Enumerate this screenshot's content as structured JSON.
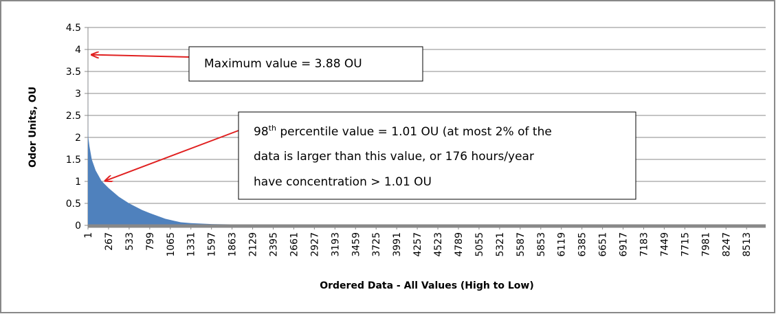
{
  "chart_data": {
    "type": "area",
    "color": "#4f81bd",
    "x_label": "Ordered Data - All Values (High to Low)",
    "y_label": "Odor Units, OU",
    "x": [
      1,
      2,
      5,
      20,
      50,
      100,
      176,
      267,
      400,
      533,
      700,
      799,
      1000,
      1200,
      1331,
      1600,
      2000,
      3000,
      4000,
      5000,
      6000,
      7000,
      8000,
      8760
    ],
    "values": [
      3.88,
      2.2,
      2.0,
      1.8,
      1.5,
      1.25,
      1.01,
      0.85,
      0.65,
      0.5,
      0.35,
      0.28,
      0.15,
      0.07,
      0.05,
      0.03,
      0.02,
      0.01,
      0.005,
      0,
      0,
      0,
      0,
      0
    ],
    "xlim": [
      1,
      8760
    ],
    "xticks": [
      1,
      267,
      533,
      799,
      1065,
      1331,
      1597,
      1863,
      2129,
      2395,
      2661,
      2927,
      3193,
      3459,
      3725,
      3991,
      4257,
      4523,
      4789,
      5055,
      5321,
      5587,
      5853,
      6119,
      6385,
      6651,
      6917,
      7183,
      7449,
      7715,
      7981,
      8247,
      8513
    ],
    "ylim": [
      0,
      4.5
    ],
    "yticks": [
      0,
      0.5,
      1,
      1.5,
      2,
      2.5,
      3,
      3.5,
      4,
      4.5
    ],
    "grid": true,
    "annotations": [
      {
        "lines": [
          {
            "text": "Maximum value = 3.88 OU"
          }
        ],
        "point": [
          1,
          3.88
        ]
      },
      {
        "lines": [
          {
            "text": "98",
            "sup": "th",
            "rest": " percentile value = 1.01 OU (at most 2% of the"
          },
          {
            "text": "data is larger than this value, or 176 hours/year"
          },
          {
            "text": "have concentration > 1.01 OU"
          }
        ],
        "point": [
          176,
          1.01
        ]
      }
    ]
  }
}
